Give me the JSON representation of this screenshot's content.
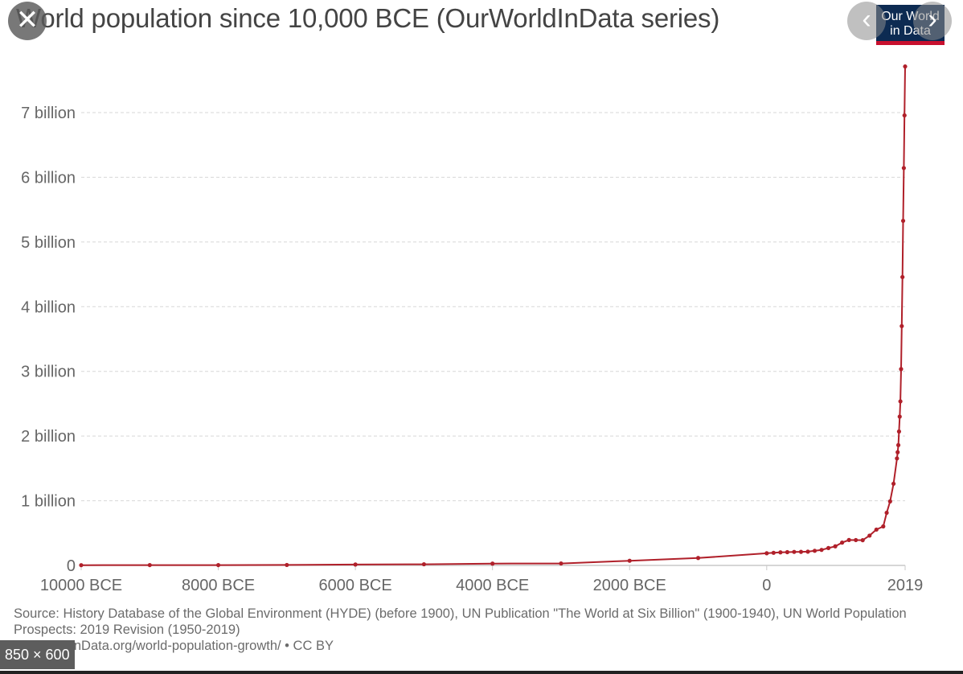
{
  "chart_data": {
    "type": "line",
    "title": "World population since 10,000 BCE (OurWorldInData series)",
    "xlabel": "",
    "ylabel": "",
    "xlim": [
      -10000,
      2019
    ],
    "ylim": [
      0,
      7700000000
    ],
    "x_ticks": [
      {
        "value": -10000,
        "label": "10000 BCE"
      },
      {
        "value": -8000,
        "label": "8000 BCE"
      },
      {
        "value": -6000,
        "label": "6000 BCE"
      },
      {
        "value": -4000,
        "label": "4000 BCE"
      },
      {
        "value": -2000,
        "label": "2000 BCE"
      },
      {
        "value": 0,
        "label": "0"
      },
      {
        "value": 2019,
        "label": "2019"
      }
    ],
    "y_ticks": [
      {
        "value": 0,
        "label": "0"
      },
      {
        "value": 1000000000,
        "label": "1 billion"
      },
      {
        "value": 2000000000,
        "label": "2 billion"
      },
      {
        "value": 3000000000,
        "label": "3 billion"
      },
      {
        "value": 4000000000,
        "label": "4 billion"
      },
      {
        "value": 5000000000,
        "label": "5 billion"
      },
      {
        "value": 6000000000,
        "label": "6 billion"
      },
      {
        "value": 7000000000,
        "label": "7 billion"
      }
    ],
    "grid": true,
    "series": [
      {
        "color": "#b0202a",
        "x": [
          -10000,
          -9000,
          -8000,
          -7000,
          -6000,
          -5000,
          -4000,
          -3000,
          -2000,
          -1000,
          0,
          100,
          200,
          300,
          400,
          500,
          600,
          700,
          800,
          900,
          1000,
          1100,
          1200,
          1300,
          1400,
          1500,
          1600,
          1700,
          1750,
          1800,
          1850,
          1900,
          1910,
          1920,
          1930,
          1940,
          1950,
          1960,
          1970,
          1980,
          1990,
          2000,
          2010,
          2019
        ],
        "y": [
          4000000,
          5000000,
          5000000,
          7000000,
          14000000,
          18000000,
          28000000,
          30000000,
          72000000,
          115000000,
          188000000,
          195000000,
          202000000,
          205000000,
          209000000,
          210000000,
          213000000,
          226000000,
          240000000,
          269000000,
          295000000,
          353000000,
          393000000,
          392000000,
          390000000,
          461000000,
          554000000,
          603000000,
          814000000,
          990000000,
          1263000000,
          1654000000,
          1750000000,
          1860000000,
          2070000000,
          2300000000,
          2536000000,
          3035000000,
          3700000000,
          4458000000,
          5327000000,
          6143000000,
          6957000000,
          7713000000
        ]
      }
    ]
  },
  "source_note": "Source: History Database of the Global Environment (HYDE) (before 1900), UN Publication \"The World at Six Billion\" (1900-1940), UN World Population Prospects: 2019 Revision (1950-2019)",
  "source_link": "OurWorldInData.org/world-population-growth/ • CC BY",
  "logo": {
    "line1": "Our World",
    "line2": "in Data"
  },
  "viewer": {
    "close_icon": "✕",
    "prev_icon": "‹",
    "next_icon": "›",
    "size_badge": "850 × 600"
  }
}
